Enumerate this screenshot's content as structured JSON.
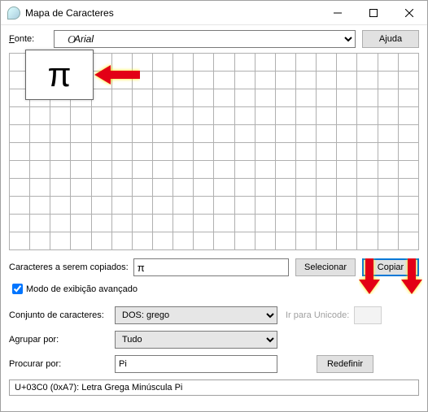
{
  "window": {
    "title": "Mapa de Caracteres"
  },
  "font": {
    "label": "Fonte:",
    "selected": "Arial"
  },
  "help_button": "Ajuda",
  "enlarged_char": "π",
  "grid": {
    "rows": 11,
    "cols": 20
  },
  "copy": {
    "label": "Caracteres a serem copiados:",
    "value": "π",
    "select_btn": "Selecionar",
    "copy_btn": "Copiar"
  },
  "advanced": {
    "checkbox_label": "Modo de exibição avançado",
    "checked": true
  },
  "charset": {
    "label": "Conjunto de caracteres:",
    "selected": "DOS: grego"
  },
  "goto_unicode": {
    "label": "Ir para Unicode:"
  },
  "groupby": {
    "label": "Agrupar por:",
    "selected": "Tudo"
  },
  "search": {
    "label": "Procurar por:",
    "value": "Pi",
    "reset_btn": "Redefinir"
  },
  "status": "U+03C0 (0xA7): Letra Grega Minúscula Pi",
  "arrow_colors": {
    "fill": "#e30613",
    "glow": "#ffe600"
  }
}
